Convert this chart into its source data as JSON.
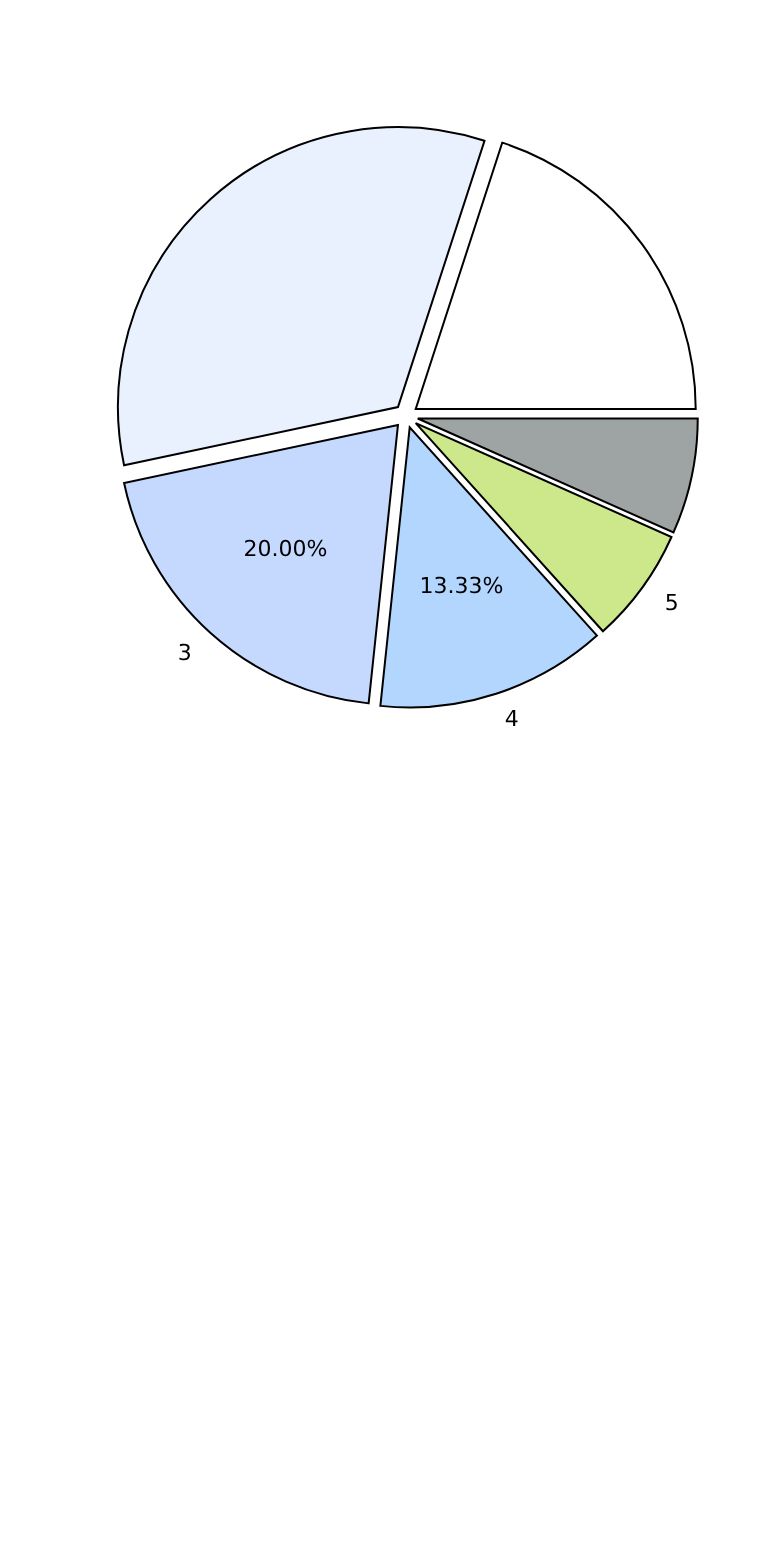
{
  "chart_data": {
    "type": "pie",
    "categories": [
      null,
      null,
      "3",
      "4",
      "5",
      null
    ],
    "values": [
      20,
      33.33,
      20,
      13.33,
      6.67,
      6.67
    ],
    "colors": [
      "#ffffff",
      "#eaf1fe",
      "#c5d9fe",
      "#b3d6fe",
      "#cce88a",
      "#9ea3a3"
    ],
    "value_labels": [
      null,
      null,
      "20.00%",
      "13.33%",
      null,
      null
    ],
    "legend": false
  }
}
